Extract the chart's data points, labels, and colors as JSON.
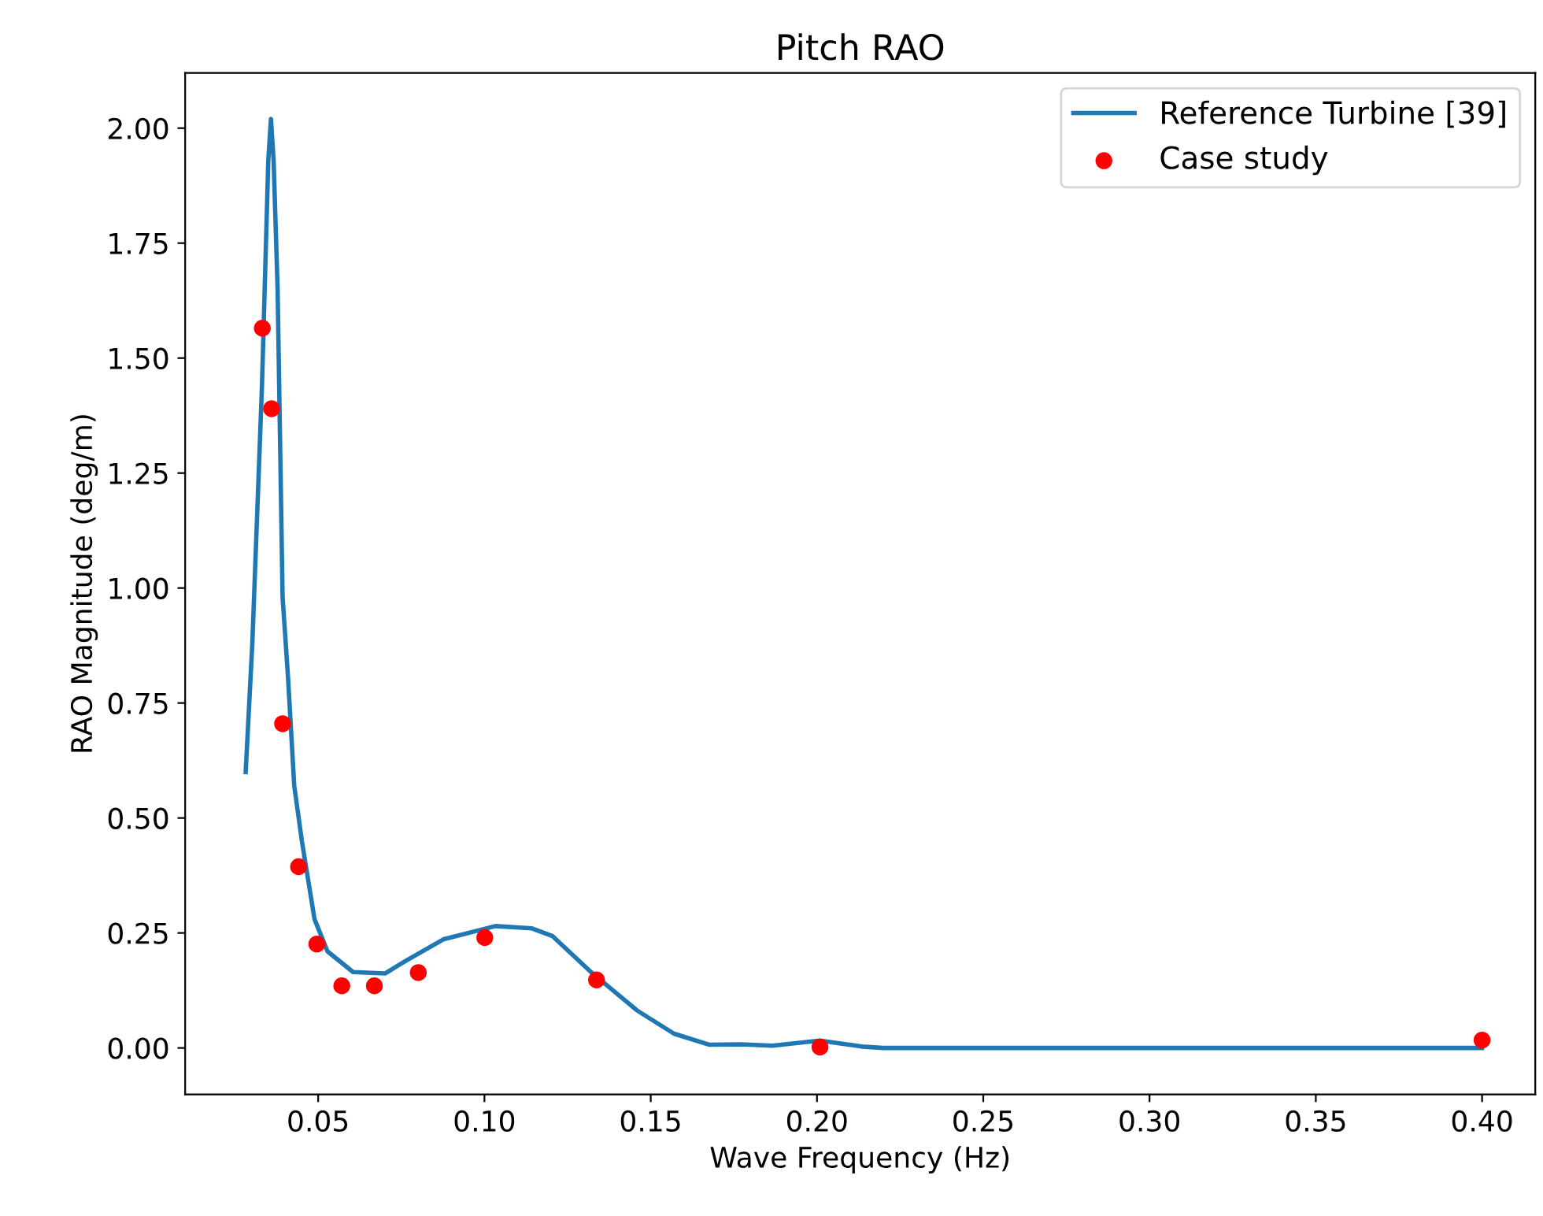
{
  "chart_data": {
    "type": "line",
    "title": "Pitch RAO",
    "xlabel": "Wave Frequency (Hz)",
    "ylabel": "RAO Magnitude (deg/m)",
    "xlim": [
      0.01,
      0.416
    ],
    "ylim": [
      -0.101,
      2.12
    ],
    "xticks": [
      {
        "value": 0.05,
        "label": "0.05"
      },
      {
        "value": 0.1,
        "label": "0.10"
      },
      {
        "value": 0.15,
        "label": "0.15"
      },
      {
        "value": 0.2,
        "label": "0.20"
      },
      {
        "value": 0.25,
        "label": "0.25"
      },
      {
        "value": 0.3,
        "label": "0.30"
      },
      {
        "value": 0.35,
        "label": "0.35"
      },
      {
        "value": 0.4,
        "label": "0.40"
      }
    ],
    "yticks": [
      {
        "value": 0,
        "label": "0.00"
      },
      {
        "value": 0.25,
        "label": "0.25"
      },
      {
        "value": 0.5,
        "label": "0.50"
      },
      {
        "value": 0.75,
        "label": "0.75"
      },
      {
        "value": 1,
        "label": "1.00"
      },
      {
        "value": 1.25,
        "label": "1.25"
      },
      {
        "value": 1.5,
        "label": "1.50"
      },
      {
        "value": 1.75,
        "label": "1.75"
      },
      {
        "value": 2,
        "label": "2.00"
      }
    ],
    "legend": "top right",
    "grid": false,
    "series": [
      {
        "name": "Reference Turbine [39]",
        "color": "#1f77b4",
        "x": [
          0.0282,
          0.0302,
          0.0331,
          0.035,
          0.0358,
          0.0366,
          0.0378,
          0.0393,
          0.0409,
          0.0428,
          0.0451,
          0.0489,
          0.0528,
          0.0605,
          0.0701,
          0.0765,
          0.0876,
          0.1033,
          0.1143,
          0.1205,
          0.1316,
          0.1458,
          0.157,
          0.1677,
          0.177,
          0.1866,
          0.2008,
          0.2135,
          0.22,
          0.3,
          0.4
        ],
        "values": [
          0.6,
          0.88,
          1.44,
          1.93,
          2.02,
          1.93,
          1.65,
          0.98,
          0.81,
          0.57,
          0.45,
          0.28,
          0.21,
          0.165,
          0.162,
          0.19,
          0.236,
          0.265,
          0.26,
          0.243,
          0.168,
          0.082,
          0.031,
          0.007,
          0.008,
          0.005,
          0.016,
          0.003,
          0.0,
          0.0,
          0.0
        ]
      },
      {
        "name": "Case study",
        "type": "scatter",
        "color": "#ff0000",
        "x": [
          0.0332,
          0.036,
          0.0393,
          0.0441,
          0.0496,
          0.0571,
          0.0669,
          0.0801,
          0.1001,
          0.1337,
          0.2009,
          0.4
        ],
        "values": [
          1.565,
          1.39,
          0.705,
          0.394,
          0.226,
          0.135,
          0.135,
          0.164,
          0.24,
          0.148,
          0.002,
          0.017
        ]
      }
    ]
  }
}
